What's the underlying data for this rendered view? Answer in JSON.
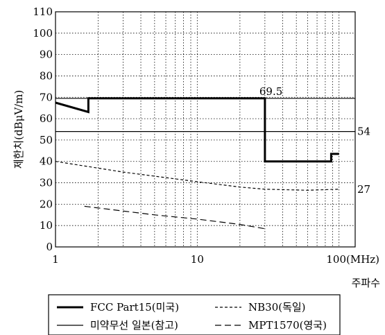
{
  "chart_data": {
    "type": "line",
    "x_scale": "log",
    "xlim": [
      1,
      130
    ],
    "ylim": [
      0,
      110
    ],
    "grid": true,
    "yticks": [
      0,
      10,
      20,
      30,
      40,
      50,
      60,
      70,
      80,
      90,
      100,
      110
    ],
    "xtick_labels": [
      {
        "x": 1,
        "label": "1"
      },
      {
        "x": 10,
        "label": "10"
      },
      {
        "x": 100,
        "label": "100(MHz)"
      }
    ],
    "ylabel": "제한치(dBμV/m)",
    "xlabel": "주파수",
    "legend_position": "bottom",
    "series": [
      {
        "name": "FCC Part15(미국)",
        "style": "thick-solid",
        "points": [
          [
            1,
            67.5
          ],
          [
            1.705,
            63.1
          ],
          [
            1.705,
            69.5
          ],
          [
            30,
            69.5
          ],
          [
            30,
            40
          ],
          [
            88,
            40
          ],
          [
            88,
            43.5
          ],
          [
            100,
            43.5
          ]
        ]
      },
      {
        "name": "미약무선 일본(참고)",
        "style": "thin-solid",
        "points": [
          [
            1,
            69.5
          ],
          [
            130,
            69.5
          ]
        ],
        "points_2": [
          [
            1,
            54
          ],
          [
            130,
            54
          ]
        ]
      },
      {
        "name": "NB30(독일)",
        "style": "short-dash",
        "points": [
          [
            1,
            40
          ],
          [
            3,
            35
          ],
          [
            10,
            30.5
          ],
          [
            20,
            28
          ],
          [
            30,
            27
          ],
          [
            60,
            26.5
          ],
          [
            100,
            27
          ]
        ]
      },
      {
        "name": "MPT1570(영국)",
        "style": "long-dash",
        "points": [
          [
            1.6,
            19
          ],
          [
            5,
            15
          ],
          [
            10,
            13
          ],
          [
            20,
            10.5
          ],
          [
            30,
            8.5
          ]
        ]
      }
    ],
    "annotations": [
      {
        "x": 30,
        "y": 69.5,
        "text": "69.5",
        "place": "above"
      },
      {
        "x": 130,
        "y": 54,
        "text": "54",
        "place": "right"
      },
      {
        "x": 130,
        "y": 27,
        "text": "27",
        "place": "right"
      }
    ]
  },
  "legend": {
    "items": [
      {
        "label": "FCC Part15(미국)",
        "style": "thick-solid"
      },
      {
        "label": "NB30(독일)",
        "style": "short-dash"
      },
      {
        "label": "미약무선 일본(참고)",
        "style": "thin-solid"
      },
      {
        "label": "MPT1570(영국)",
        "style": "long-dash"
      }
    ]
  }
}
